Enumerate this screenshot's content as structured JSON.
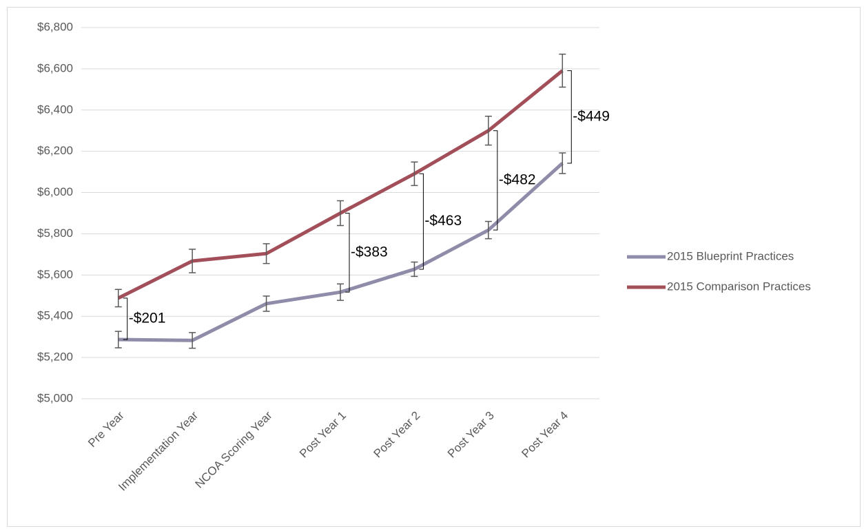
{
  "chart_data": {
    "type": "line",
    "categories": [
      "Pre Year",
      "Implementation Year",
      "NCOA Scoring Year",
      "Post Year 1",
      "Post Year 2",
      "Post Year 3",
      "Post Year 4"
    ],
    "series": [
      {
        "name": "2015 Blueprint Practices",
        "color": "#8e8ca9",
        "values": [
          5287,
          5283,
          5461,
          5517,
          5628,
          5818,
          6142
        ],
        "errors": [
          40,
          38,
          37,
          40,
          35,
          42,
          50
        ]
      },
      {
        "name": "2015 Comparison Practices",
        "color": "#a34f5a",
        "values": [
          5488,
          5668,
          5704,
          5900,
          6091,
          6300,
          6591
        ],
        "errors": [
          42,
          57,
          48,
          60,
          57,
          70,
          80
        ]
      }
    ],
    "ylim": [
      5000,
      6800
    ],
    "yticks": [
      {
        "value": 5000,
        "label": "$5,000"
      },
      {
        "value": 5200,
        "label": "$5,200"
      },
      {
        "value": 5400,
        "label": "$5,400"
      },
      {
        "value": 5600,
        "label": "$5,600"
      },
      {
        "value": 5800,
        "label": "$5,800"
      },
      {
        "value": 6000,
        "label": "$6,000"
      },
      {
        "value": 6200,
        "label": "$6,200"
      },
      {
        "value": 6400,
        "label": "$6,400"
      },
      {
        "value": 6600,
        "label": "$6,600"
      },
      {
        "value": 6800,
        "label": "$6,800"
      }
    ],
    "grid": true,
    "legend": "right",
    "annotations": [
      {
        "text": "-$201",
        "x": "Pre Year"
      },
      {
        "text": "-$383",
        "x": "Post Year 1"
      },
      {
        "text": "-$463",
        "x": "Post Year 2"
      },
      {
        "text": "-$482",
        "x": "Post Year 3"
      },
      {
        "text": "-$449",
        "x": "Post Year 4"
      }
    ]
  }
}
